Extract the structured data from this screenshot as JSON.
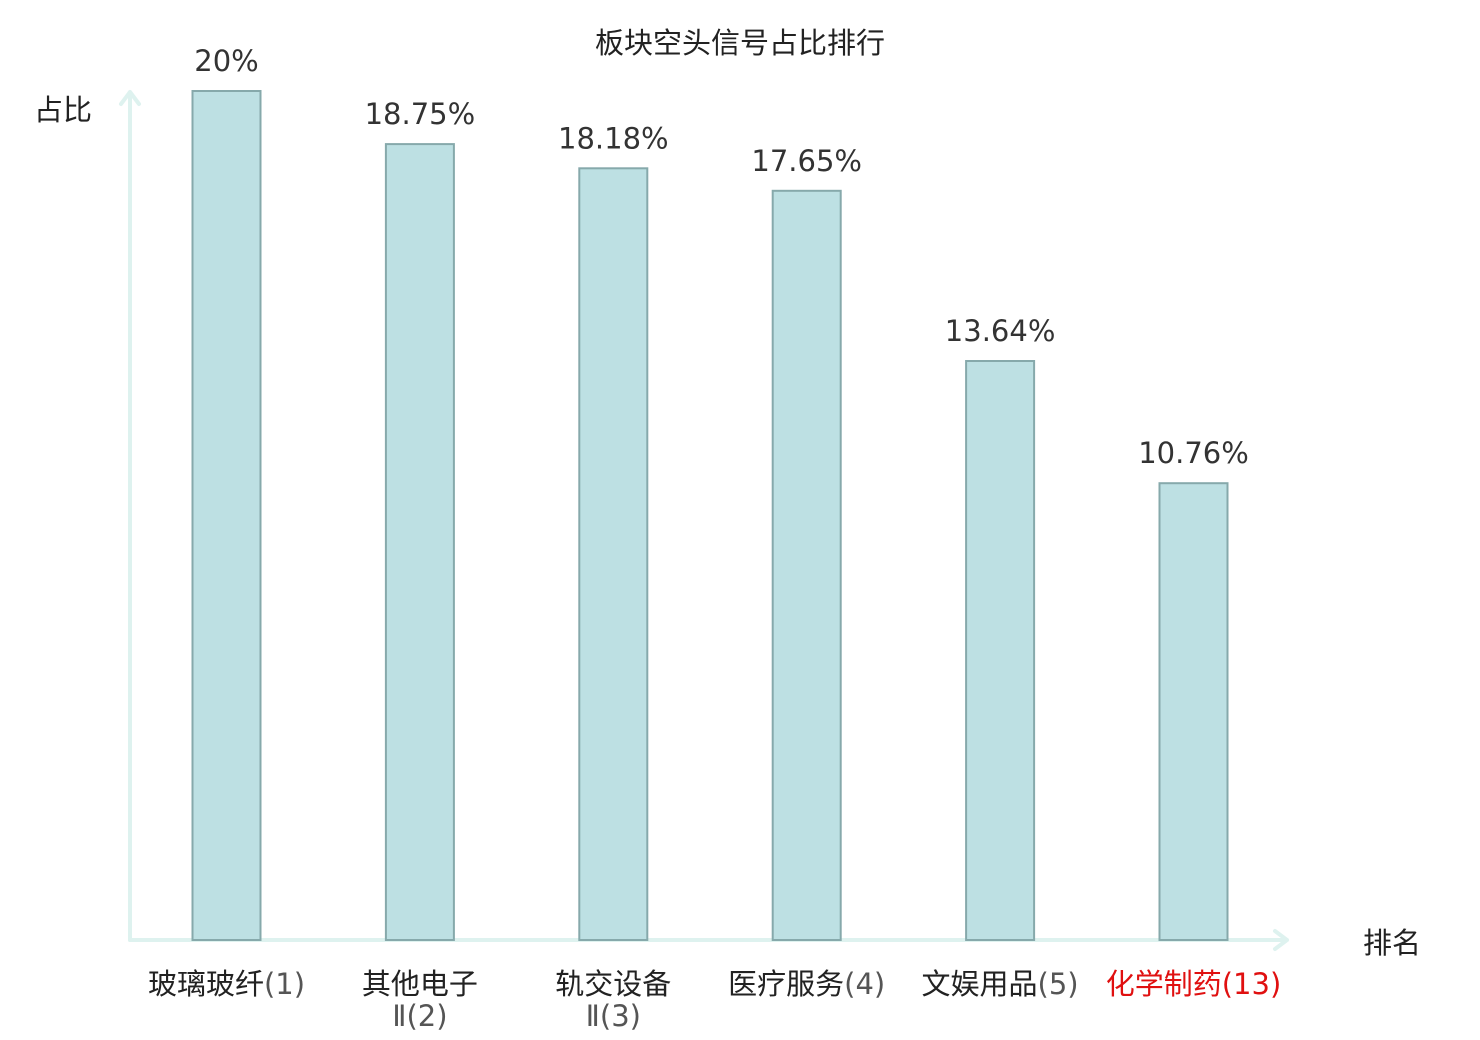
{
  "chart_data": {
    "type": "bar",
    "title": "板块空头信号占比排行",
    "ylabel": "占比",
    "xlabel": "排名",
    "ylim": [
      0,
      20
    ],
    "grid": false,
    "legend": "none",
    "bar_color": "#bde0e3",
    "bar_border_color": "#86a9ab",
    "axis_color": "#def2ef",
    "highlight_color": "#e01010",
    "categories": [
      {
        "name": "玻璃玻纤",
        "rank": "(1)",
        "value": 20,
        "label": "20%",
        "highlight": false
      },
      {
        "name": "其他电子",
        "name_line2": "Ⅱ",
        "rank": "(2)",
        "value": 18.75,
        "label": "18.75%",
        "highlight": false
      },
      {
        "name": "轨交设备",
        "name_line2": "Ⅱ",
        "rank": "(3)",
        "value": 18.18,
        "label": "18.18%",
        "highlight": false
      },
      {
        "name": "医疗服务",
        "rank": "(4)",
        "value": 17.65,
        "label": "17.65%",
        "highlight": false
      },
      {
        "name": "文娱用品",
        "rank": "(5)",
        "value": 13.64,
        "label": "13.64%",
        "highlight": false
      },
      {
        "name": "化学制药",
        "rank": "(13)",
        "value": 10.76,
        "label": "10.76%",
        "highlight": true
      }
    ]
  }
}
